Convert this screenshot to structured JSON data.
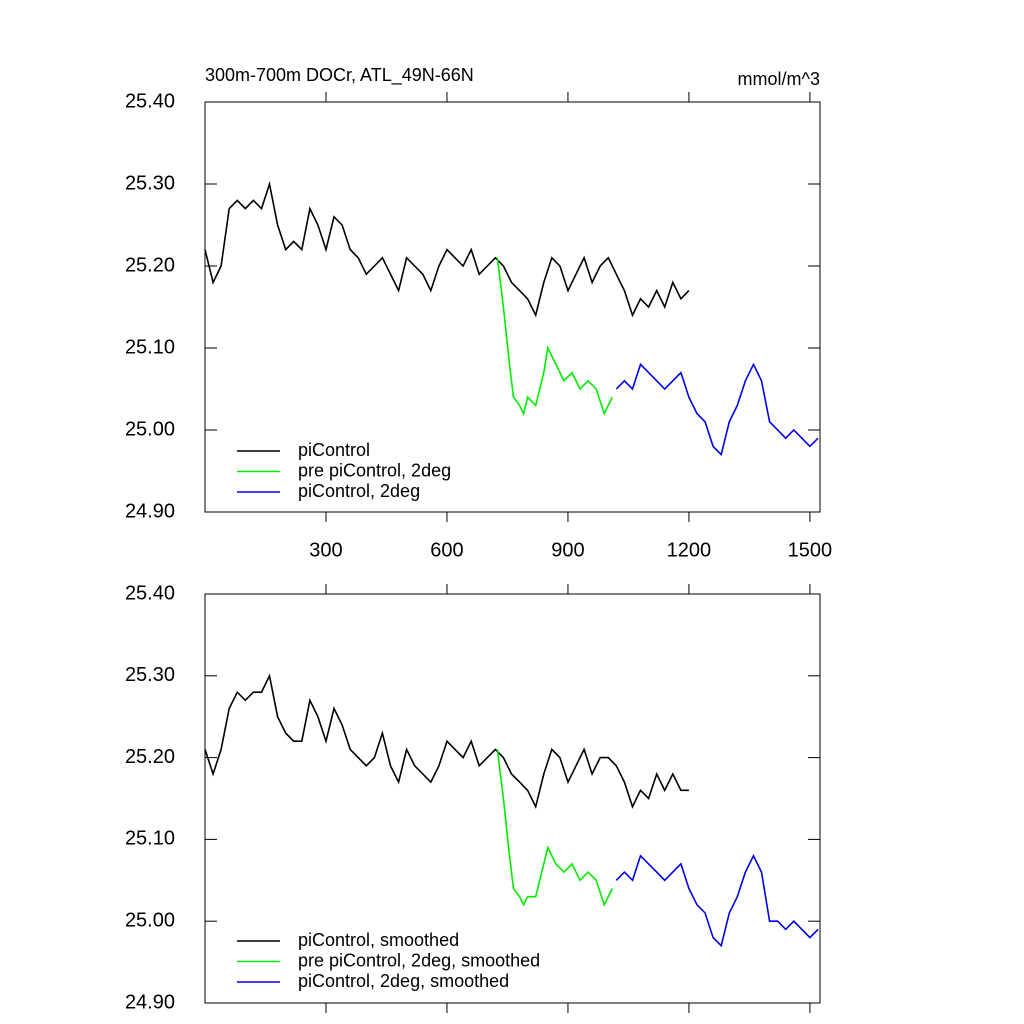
{
  "chart_data": [
    {
      "type": "line",
      "title": "300m-700m DOCr, ATL_49N-66N",
      "units": "mmol/m^3",
      "xlim": [
        0,
        1525
      ],
      "ylim": [
        24.9,
        25.4
      ],
      "xticks": [
        300,
        600,
        900,
        1200,
        1500
      ],
      "xtick_labels": true,
      "yticks": [
        {
          "value": 24.9,
          "label": "24.90"
        },
        {
          "value": 25.0,
          "label": "25.00"
        },
        {
          "value": 25.1,
          "label": "25.10"
        },
        {
          "value": 25.2,
          "label": "25.20"
        },
        {
          "value": 25.3,
          "label": "25.30"
        },
        {
          "value": 25.4,
          "label": "25.40"
        }
      ],
      "legend": "lower left",
      "series": [
        {
          "name": "piControl",
          "color": "#000000",
          "x": [
            0,
            20,
            40,
            60,
            80,
            100,
            120,
            140,
            160,
            180,
            200,
            220,
            240,
            260,
            280,
            300,
            320,
            340,
            360,
            380,
            400,
            420,
            440,
            460,
            480,
            500,
            520,
            540,
            560,
            580,
            600,
            620,
            640,
            660,
            680,
            700,
            720,
            740,
            760,
            780,
            800,
            820,
            840,
            860,
            880,
            900,
            920,
            940,
            960,
            980,
            1000,
            1020,
            1040,
            1060,
            1080,
            1100,
            1120,
            1140,
            1160,
            1180,
            1200
          ],
          "values": [
            25.22,
            25.18,
            25.2,
            25.27,
            25.28,
            25.27,
            25.28,
            25.27,
            25.3,
            25.25,
            25.22,
            25.23,
            25.22,
            25.27,
            25.25,
            25.22,
            25.26,
            25.25,
            25.22,
            25.21,
            25.19,
            25.2,
            25.21,
            25.19,
            25.17,
            25.21,
            25.2,
            25.19,
            25.17,
            25.2,
            25.22,
            25.21,
            25.2,
            25.22,
            25.19,
            25.2,
            25.21,
            25.2,
            25.18,
            25.17,
            25.16,
            25.14,
            25.18,
            25.21,
            25.2,
            25.17,
            25.19,
            25.21,
            25.18,
            25.2,
            25.21,
            25.19,
            25.17,
            25.14,
            25.16,
            25.15,
            25.17,
            25.15,
            25.18,
            25.16,
            25.17
          ]
        },
        {
          "name": "pre piControl, 2deg",
          "color": "#00ee00",
          "x": [
            725,
            740,
            755,
            765,
            780,
            790,
            800,
            820,
            840,
            850,
            870,
            890,
            910,
            930,
            950,
            970,
            990,
            1010
          ],
          "values": [
            25.21,
            25.15,
            25.08,
            25.04,
            25.03,
            25.02,
            25.04,
            25.03,
            25.07,
            25.1,
            25.08,
            25.06,
            25.07,
            25.05,
            25.06,
            25.05,
            25.02,
            25.04
          ]
        },
        {
          "name": "piControl, 2deg",
          "color": "#0000ee",
          "x": [
            1020,
            1040,
            1060,
            1080,
            1100,
            1120,
            1140,
            1160,
            1180,
            1200,
            1220,
            1240,
            1260,
            1280,
            1300,
            1320,
            1340,
            1360,
            1380,
            1400,
            1420,
            1440,
            1460,
            1480,
            1500,
            1520
          ],
          "values": [
            25.05,
            25.06,
            25.05,
            25.08,
            25.07,
            25.06,
            25.05,
            25.06,
            25.07,
            25.04,
            25.02,
            25.01,
            24.98,
            24.97,
            25.01,
            25.03,
            25.06,
            25.08,
            25.06,
            25.01,
            25.0,
            24.99,
            25.0,
            24.99,
            24.98,
            24.99
          ]
        }
      ]
    },
    {
      "type": "line",
      "xlim": [
        0,
        1525
      ],
      "ylim": [
        24.9,
        25.4
      ],
      "xticks": [
        300,
        600,
        900,
        1200,
        1500
      ],
      "xtick_labels": false,
      "yticks": [
        {
          "value": 24.9,
          "label": "24.90"
        },
        {
          "value": 25.0,
          "label": "25.00"
        },
        {
          "value": 25.1,
          "label": "25.10"
        },
        {
          "value": 25.2,
          "label": "25.20"
        },
        {
          "value": 25.3,
          "label": "25.30"
        },
        {
          "value": 25.4,
          "label": "25.40"
        }
      ],
      "legend": "lower left",
      "series": [
        {
          "name": "piControl, smoothed",
          "color": "#000000",
          "x": [
            0,
            20,
            40,
            60,
            80,
            100,
            120,
            140,
            160,
            180,
            200,
            220,
            240,
            260,
            280,
            300,
            320,
            340,
            360,
            380,
            400,
            420,
            440,
            460,
            480,
            500,
            520,
            540,
            560,
            580,
            600,
            620,
            640,
            660,
            680,
            700,
            720,
            740,
            760,
            780,
            800,
            820,
            840,
            860,
            880,
            900,
            920,
            940,
            960,
            980,
            1000,
            1020,
            1040,
            1060,
            1080,
            1100,
            1120,
            1140,
            1160,
            1180,
            1200
          ],
          "values": [
            25.21,
            25.18,
            25.21,
            25.26,
            25.28,
            25.27,
            25.28,
            25.28,
            25.3,
            25.25,
            25.23,
            25.22,
            25.22,
            25.27,
            25.25,
            25.22,
            25.26,
            25.24,
            25.21,
            25.2,
            25.19,
            25.2,
            25.23,
            25.19,
            25.17,
            25.21,
            25.19,
            25.18,
            25.17,
            25.19,
            25.22,
            25.21,
            25.2,
            25.22,
            25.19,
            25.2,
            25.21,
            25.2,
            25.18,
            25.17,
            25.16,
            25.14,
            25.18,
            25.21,
            25.2,
            25.17,
            25.19,
            25.21,
            25.18,
            25.2,
            25.2,
            25.19,
            25.17,
            25.14,
            25.16,
            25.15,
            25.18,
            25.16,
            25.18,
            25.16,
            25.16
          ]
        },
        {
          "name": "pre piControl, 2deg, smoothed",
          "color": "#00ee00",
          "x": [
            725,
            740,
            755,
            765,
            780,
            790,
            800,
            820,
            840,
            850,
            870,
            890,
            910,
            930,
            950,
            970,
            990,
            1010
          ],
          "values": [
            25.21,
            25.15,
            25.08,
            25.04,
            25.03,
            25.02,
            25.03,
            25.03,
            25.07,
            25.09,
            25.07,
            25.06,
            25.07,
            25.05,
            25.06,
            25.05,
            25.02,
            25.04
          ]
        },
        {
          "name": "piControl, 2deg, smoothed",
          "color": "#0000ee",
          "x": [
            1020,
            1040,
            1060,
            1080,
            1100,
            1120,
            1140,
            1160,
            1180,
            1200,
            1220,
            1240,
            1260,
            1280,
            1300,
            1320,
            1340,
            1360,
            1380,
            1400,
            1420,
            1440,
            1460,
            1480,
            1500,
            1520
          ],
          "values": [
            25.05,
            25.06,
            25.05,
            25.08,
            25.07,
            25.06,
            25.05,
            25.06,
            25.07,
            25.04,
            25.02,
            25.01,
            24.98,
            24.97,
            25.01,
            25.03,
            25.06,
            25.08,
            25.06,
            25.0,
            25.0,
            24.99,
            25.0,
            24.99,
            24.98,
            24.99
          ]
        }
      ]
    }
  ]
}
